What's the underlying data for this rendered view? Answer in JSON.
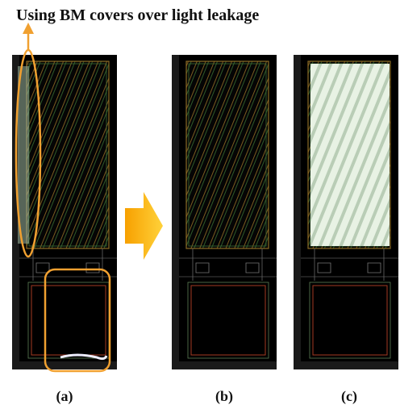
{
  "figure": {
    "title": "Using BM covers over light leakage",
    "labels": [
      "(a)",
      "(b)",
      "(c)"
    ]
  }
}
